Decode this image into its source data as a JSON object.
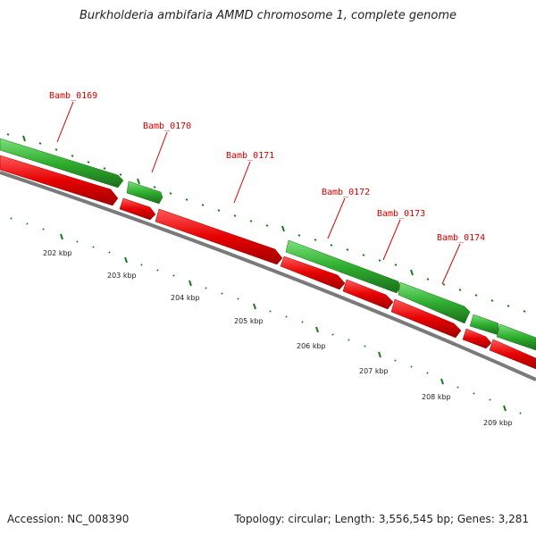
{
  "title": "Burkholderia ambifaria AMMD chromosome 1, complete genome",
  "accession": "Accession: NC_008390",
  "summary": "Topology: circular; Length: 3,556,545 bp; Genes: 3,281",
  "colors": {
    "forward_strand": "#2eae2e",
    "reverse_strand": "#e60000",
    "backbone": "#7a7a7a",
    "label": "#d40000",
    "tick": "#1f7a1f"
  },
  "genes": [
    {
      "label": "Bamb_0169",
      "strand": "forward"
    },
    {
      "label": "Bamb_0170",
      "strand": "forward"
    },
    {
      "label": "Bamb_0171",
      "strand": "reverse"
    },
    {
      "label": "Bamb_0172",
      "strand": "forward"
    },
    {
      "label": "Bamb_0173",
      "strand": "forward"
    },
    {
      "label": "Bamb_0174",
      "strand": "forward"
    }
  ],
  "position_labels": [
    "202 kbp",
    "203 kbp",
    "204 kbp",
    "205 kbp",
    "206 kbp",
    "207 kbp",
    "208 kbp",
    "209 kbp"
  ]
}
